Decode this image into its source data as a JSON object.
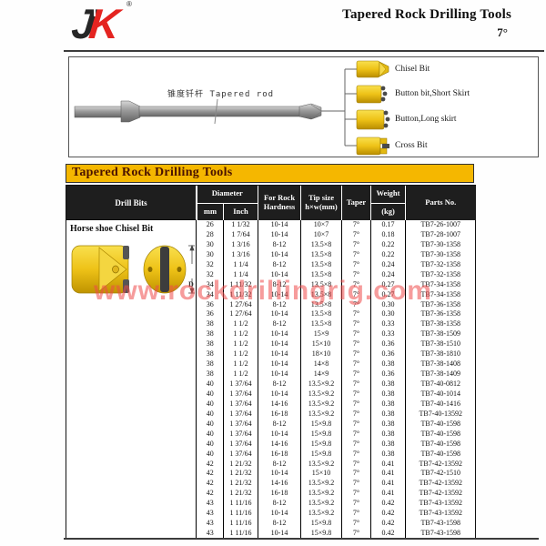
{
  "header": {
    "logo_j": "J",
    "logo_k": "K",
    "logo_arrow": "↑",
    "registered_mark": "®",
    "title": "Tapered Rock Drilling Tools",
    "subtitle": "7°"
  },
  "diagram": {
    "rod_label_cn": "锥度钎杆",
    "rod_label_en": "Tapered rod",
    "bits": [
      {
        "label": "Chisel Bit"
      },
      {
        "label": "Button bit,Short Skirt"
      },
      {
        "label": "Button,Long skirt"
      },
      {
        "label": "Cross Bit"
      }
    ]
  },
  "banner": {
    "title": "Tapered Rock Drilling Tools"
  },
  "table": {
    "headers": {
      "drill_bits": "Drill Bits",
      "diameter": "Diameter",
      "mm": "mm",
      "inch": "Inch",
      "hardness_line1": "For Rock",
      "hardness_line2": "Hardness",
      "tip_line1": "Tip size",
      "tip_line2": "h×w(mm)",
      "taper": "Taper",
      "weight_line1": "Weight",
      "weight_line2": "(kg)",
      "parts_no": "Parts No."
    },
    "product_name": "Horse shoe Chisel Bit",
    "dimension_label": "D",
    "rows": [
      [
        "26",
        "1 1/32",
        "10-14",
        "10×7",
        "7°",
        "0.17",
        "TB7-26-1007"
      ],
      [
        "28",
        "1 7/64",
        "10-14",
        "10×7",
        "7°",
        "0.18",
        "TB7-28-1007"
      ],
      [
        "30",
        "1 3/16",
        "8-12",
        "13.5×8",
        "7°",
        "0.22",
        "TB7-30-1358"
      ],
      [
        "30",
        "1 3/16",
        "10-14",
        "13.5×8",
        "7°",
        "0.22",
        "TB7-30-1358"
      ],
      [
        "32",
        "1 1/4",
        "8-12",
        "13.5×8",
        "7°",
        "0.24",
        "TB7-32-1358"
      ],
      [
        "32",
        "1 1/4",
        "10-14",
        "13.5×8",
        "7°",
        "0.24",
        "TB7-32-1358"
      ],
      [
        "34",
        "1 11/32",
        "8-12",
        "13.5×8",
        "7°",
        "0.27",
        "TB7-34-1358"
      ],
      [
        "34",
        "1 11/32",
        "10-14",
        "13.5×8",
        "7°",
        "0.27",
        "TB7-34-1358"
      ],
      [
        "36",
        "1 27/64",
        "8-12",
        "13.5×8",
        "7°",
        "0.30",
        "TB7-36-1358"
      ],
      [
        "36",
        "1 27/64",
        "10-14",
        "13.5×8",
        "7°",
        "0.30",
        "TB7-36-1358"
      ],
      [
        "38",
        "1 1/2",
        "8-12",
        "13.5×8",
        "7°",
        "0.33",
        "TB7-38-1358"
      ],
      [
        "38",
        "1 1/2",
        "10-14",
        "15×9",
        "7°",
        "0.33",
        "TB7-38-1509"
      ],
      [
        "38",
        "1 1/2",
        "10-14",
        "15×10",
        "7°",
        "0.36",
        "TB7-38-1510"
      ],
      [
        "38",
        "1 1/2",
        "10-14",
        "18×10",
        "7°",
        "0.36",
        "TB7-38-1810"
      ],
      [
        "38",
        "1 1/2",
        "10-14",
        "14×8",
        "7°",
        "0.38",
        "TB7-38-1408"
      ],
      [
        "38",
        "1 1/2",
        "10-14",
        "14×9",
        "7°",
        "0.36",
        "TB7-38-1409"
      ],
      [
        "40",
        "1 37/64",
        "8-12",
        "13.5×9.2",
        "7°",
        "0.38",
        "TB7-40-0812"
      ],
      [
        "40",
        "1 37/64",
        "10-14",
        "13.5×9.2",
        "7°",
        "0.38",
        "TB7-40-1014"
      ],
      [
        "40",
        "1 37/64",
        "14-16",
        "13.5×9.2",
        "7°",
        "0.38",
        "TB7-40-1416"
      ],
      [
        "40",
        "1 37/64",
        "16-18",
        "13.5×9.2",
        "7°",
        "0.38",
        "TB7-40-13592"
      ],
      [
        "40",
        "1 37/64",
        "8-12",
        "15×9.8",
        "7°",
        "0.38",
        "TB7-40-1598"
      ],
      [
        "40",
        "1 37/64",
        "10-14",
        "15×9.8",
        "7°",
        "0.38",
        "TB7-40-1598"
      ],
      [
        "40",
        "1 37/64",
        "14-16",
        "15×9.8",
        "7°",
        "0.38",
        "TB7-40-1598"
      ],
      [
        "40",
        "1 37/64",
        "16-18",
        "15×9.8",
        "7°",
        "0.38",
        "TB7-40-1598"
      ],
      [
        "42",
        "1 21/32",
        "8-12",
        "13.5×9.2",
        "7°",
        "0.41",
        "TB7-42-13592"
      ],
      [
        "42",
        "1 21/32",
        "10-14",
        "15×10",
        "7°",
        "0.41",
        "TB7-42-1510"
      ],
      [
        "42",
        "1 21/32",
        "14-16",
        "13.5×9.2",
        "7°",
        "0.41",
        "TB7-42-13592"
      ],
      [
        "42",
        "1 21/32",
        "16-18",
        "13.5×9.2",
        "7°",
        "0.41",
        "TB7-42-13592"
      ],
      [
        "43",
        "1 11/16",
        "8-12",
        "13.5×9.2",
        "7°",
        "0.42",
        "TB7-43-13592"
      ],
      [
        "43",
        "1 11/16",
        "10-14",
        "13.5×9.2",
        "7°",
        "0.42",
        "TB7-43-13592"
      ],
      [
        "43",
        "1 11/16",
        "8-12",
        "15×9.8",
        "7°",
        "0.42",
        "TB7-43-1598"
      ],
      [
        "43",
        "1 11/16",
        "10-14",
        "15×9.8",
        "7°",
        "0.42",
        "TB7-43-1598"
      ]
    ]
  },
  "watermark": "www.rockdrillingrig.com",
  "colors": {
    "banner_gold": "#F5B700",
    "table_header_dark": "#1E1E1E",
    "logo_red": "#E42420",
    "logo_black": "#262626",
    "bit_yellow": "#F2CC2E",
    "watermark_red": "#EE4A4A",
    "banner_text_maroon": "#4A1200"
  }
}
